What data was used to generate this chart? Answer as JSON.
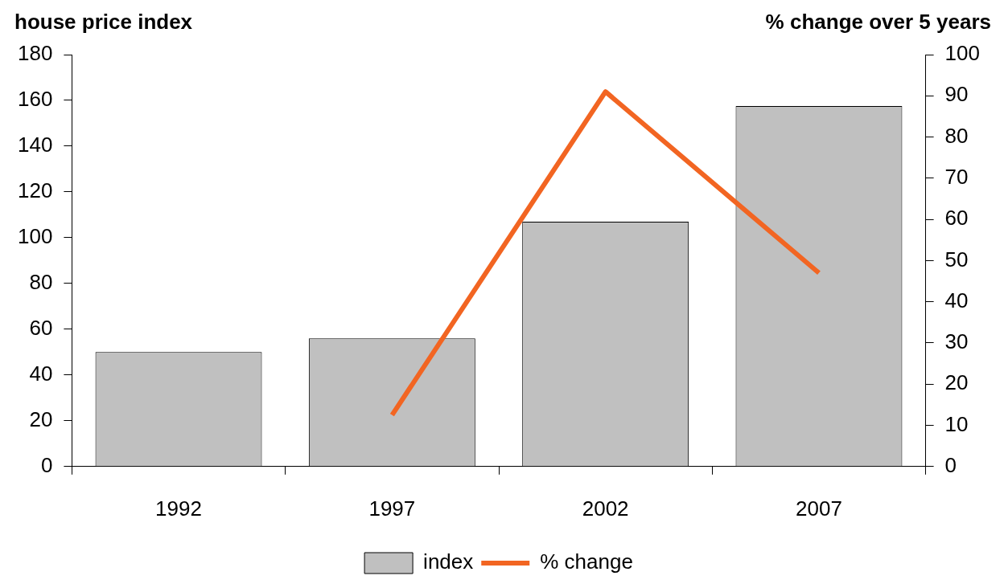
{
  "chart_data": {
    "type": "bar",
    "ylabel": "house price index",
    "y2label": "% change over 5 years",
    "categories": [
      "1992",
      "1997",
      "2002",
      "2007"
    ],
    "series": [
      {
        "name": "index",
        "color": "#c0c0c0",
        "values": [
          50,
          56,
          107,
          157.5
        ]
      },
      {
        "name": "% change",
        "type": "line",
        "axis": "y2",
        "color": "#f26522",
        "values": [
          null,
          12.5,
          91,
          47
        ]
      }
    ],
    "ylim": [
      0,
      180
    ],
    "yticks": [
      0,
      20,
      40,
      60,
      80,
      100,
      120,
      140,
      160,
      180
    ],
    "y2lim": [
      0,
      100
    ],
    "y2ticks": [
      0,
      10,
      20,
      30,
      40,
      50,
      60,
      70,
      80,
      90,
      100
    ],
    "grid": false,
    "legend": "bottom",
    "marker": "none"
  }
}
